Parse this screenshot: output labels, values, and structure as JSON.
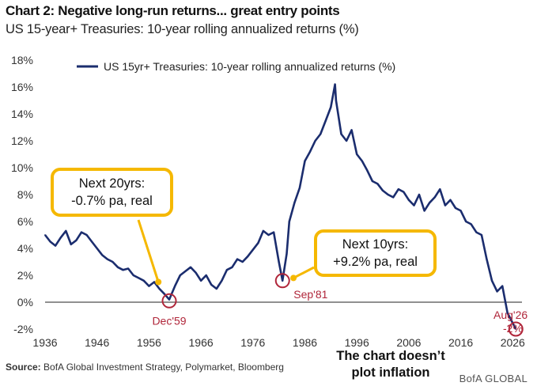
{
  "title": "Chart 2: Negative long-run returns... great entry points",
  "subtitle": "US 15-year+ Treasuries: 10-year rolling annualized returns (%)",
  "source_label": "Source:",
  "source_text": "BofA Global Investment Strategy, Polymarket, Bloomberg",
  "brand": "BofA GLOBAL",
  "note_lines": [
    "The chart doesn’t",
    "plot inflation"
  ],
  "callouts": {
    "left": [
      "Next 20yrs:",
      "-0.7% pa, real"
    ],
    "right": [
      "Next 10yrs:",
      "+9.2% pa, real"
    ]
  },
  "markers": {
    "dec59": "Dec'59",
    "sep81": "Sep'81",
    "aug26_a": "Aug'26",
    "aug26_b": "-2%"
  },
  "colors": {
    "series": "#1b2d6e",
    "marker": "#b0263a",
    "callout_border": "#f5b800"
  },
  "chart_data": {
    "type": "line",
    "title": "Chart 2: Negative long-run returns... great entry points",
    "subtitle": "US 15-year+ Treasuries: 10-year rolling annualized returns (%)",
    "legend_position": "top",
    "grid": false,
    "xlim": [
      1936,
      2029
    ],
    "ylim": [
      -2,
      18
    ],
    "x_ticks": [
      1936,
      1946,
      1956,
      1966,
      1976,
      1986,
      1996,
      2006,
      2016,
      2026
    ],
    "y_ticks": [
      -2,
      0,
      2,
      4,
      6,
      8,
      10,
      12,
      14,
      16,
      18
    ],
    "y_tick_labels": [
      "-2%",
      "0%",
      "2%",
      "4%",
      "6%",
      "8%",
      "10%",
      "12%",
      "14%",
      "16%",
      "18%"
    ],
    "series": [
      {
        "name": "US 15yr+ Treasuries: 10-year rolling annualized returns (%)",
        "x": [
          1936,
          1937,
          1938,
          1939,
          1940,
          1941,
          1942,
          1943,
          1944,
          1945,
          1946,
          1947,
          1948,
          1949,
          1950,
          1951,
          1952,
          1953,
          1954,
          1955,
          1956,
          1957,
          1958,
          1959,
          1959.9,
          1961,
          1962,
          1963,
          1964,
          1965,
          1966,
          1967,
          1968,
          1969,
          1970,
          1971,
          1972,
          1973,
          1974,
          1975,
          1976,
          1977,
          1978,
          1979,
          1980,
          1981,
          1981.7,
          1982.5,
          1983,
          1984,
          1985,
          1986,
          1987,
          1988,
          1989,
          1990,
          1991,
          1991.8,
          1992,
          1993,
          1994,
          1995,
          1996,
          1997,
          1998,
          1999,
          2000,
          2001,
          2002,
          2003,
          2004,
          2005,
          2006,
          2007,
          2008,
          2009,
          2010,
          2011,
          2012,
          2013,
          2014,
          2015,
          2016,
          2017,
          2018,
          2019,
          2020,
          2021,
          2022,
          2023,
          2024,
          2025,
          2026.6
        ],
        "values": [
          5.0,
          4.5,
          4.2,
          4.8,
          5.3,
          4.3,
          4.6,
          5.2,
          5.0,
          4.5,
          4.0,
          3.5,
          3.2,
          3.0,
          2.6,
          2.4,
          2.5,
          2.0,
          1.8,
          1.6,
          1.2,
          1.5,
          1.0,
          0.6,
          0.2,
          1.2,
          2.0,
          2.3,
          2.6,
          2.2,
          1.6,
          2.0,
          1.3,
          1.0,
          1.6,
          2.4,
          2.6,
          3.2,
          3.0,
          3.4,
          3.9,
          4.4,
          5.3,
          5.0,
          5.2,
          3.0,
          1.6,
          3.6,
          6.0,
          7.4,
          8.5,
          10.5,
          11.2,
          12.0,
          12.5,
          13.5,
          14.5,
          16.2,
          15.0,
          12.5,
          12.0,
          12.8,
          11.0,
          10.5,
          9.8,
          9.0,
          8.8,
          8.3,
          8.0,
          7.8,
          8.4,
          8.2,
          7.6,
          7.2,
          8.0,
          6.8,
          7.4,
          7.8,
          8.4,
          7.2,
          7.6,
          7.0,
          6.8,
          6.0,
          5.8,
          5.2,
          5.0,
          3.2,
          1.6,
          0.8,
          1.2,
          -0.8,
          -2.0
        ]
      }
    ]
  }
}
